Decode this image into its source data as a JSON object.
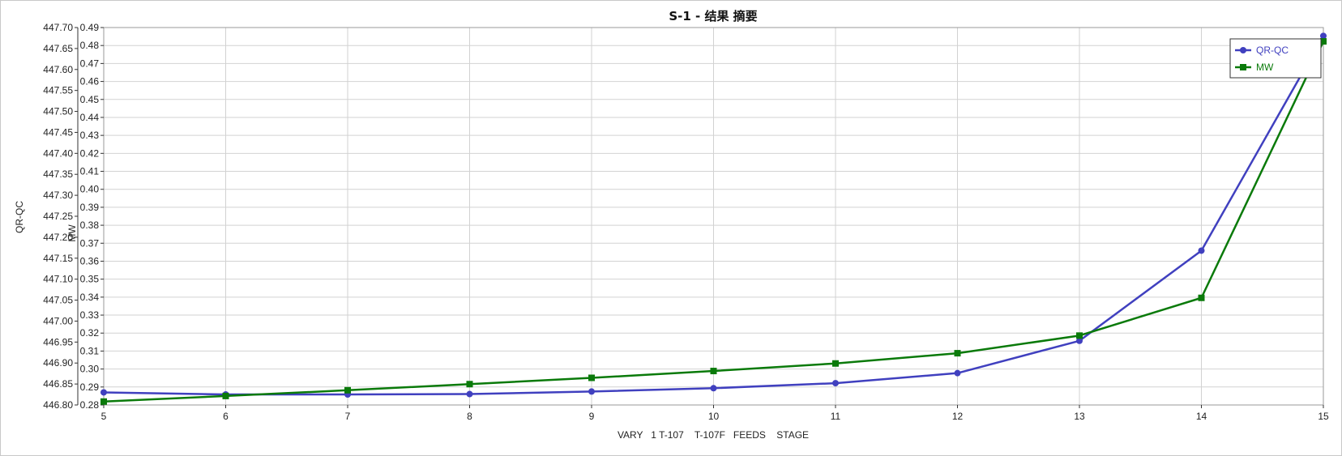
{
  "chart_data": {
    "type": "line",
    "title": "S-1 - 结果 摘要",
    "xlabel": "VARY   1 T-107    T-107F   FEEDS    STAGE",
    "x": [
      5,
      6,
      7,
      8,
      9,
      10,
      11,
      12,
      13,
      14,
      15
    ],
    "xlim": [
      5,
      15
    ],
    "grid": true,
    "legend_position": "top-right",
    "axes": {
      "left_outer": {
        "label": "QR-QC",
        "ylim": [
          446.8,
          447.7
        ],
        "ticks": [
          "446.80",
          "446.85",
          "446.90",
          "446.95",
          "447.00",
          "447.05",
          "447.10",
          "447.15",
          "447.20",
          "447.25",
          "447.30",
          "447.35",
          "447.40",
          "447.45",
          "447.50",
          "447.55",
          "447.60",
          "447.65",
          "447.70"
        ]
      },
      "left_inner": {
        "label": "MW",
        "ylim": [
          0.28,
          0.49
        ],
        "ticks": [
          "0.28",
          "0.29",
          "0.30",
          "0.31",
          "0.32",
          "0.33",
          "0.34",
          "0.35",
          "0.36",
          "0.37",
          "0.38",
          "0.39",
          "0.40",
          "0.41",
          "0.42",
          "0.43",
          "0.44",
          "0.45",
          "0.46",
          "0.47",
          "0.48",
          "0.49"
        ]
      }
    },
    "series": [
      {
        "name": "QR-QC",
        "axis": "left_outer",
        "color": "#4040bf",
        "marker": "circle",
        "values": [
          446.83,
          446.825,
          446.825,
          446.826,
          446.832,
          446.84,
          446.852,
          446.876,
          446.953,
          447.168,
          447.68
        ]
      },
      {
        "name": "MW",
        "axis": "left_inner",
        "color": "#0a7a0a",
        "marker": "square",
        "values": [
          0.2819,
          0.285,
          0.2882,
          0.2916,
          0.2951,
          0.2989,
          0.3031,
          0.3088,
          0.3186,
          0.3396,
          0.4823
        ]
      }
    ]
  }
}
